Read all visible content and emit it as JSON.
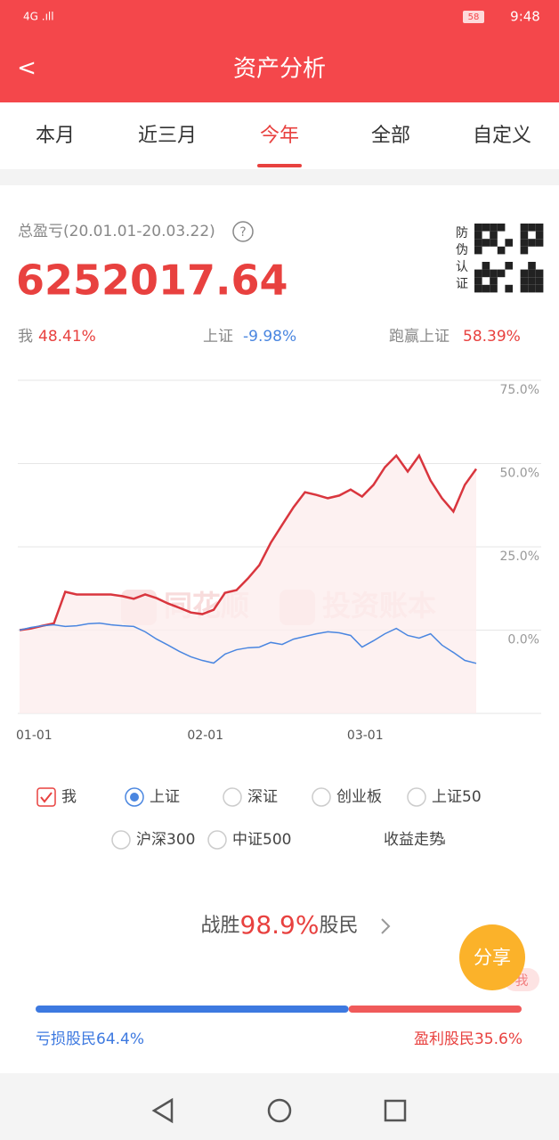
{
  "status_bar": {
    "battery": "58",
    "time": "9:48"
  },
  "header": {
    "back": "<",
    "title": "资产分析"
  },
  "tabs": [
    "本月",
    "近三月",
    "今年",
    "全部",
    "自定义"
  ],
  "active_tab": 2,
  "summary": {
    "label": "总盈亏(20.01.01-20.03.22)",
    "help": "?",
    "total": "6252017.64",
    "qr_label": [
      "防",
      "伪",
      "认",
      "证"
    ],
    "me_label": "我",
    "me_value": "48.41%",
    "index_label": "上证",
    "index_value": "-9.98%",
    "beat_label": "跑赢上证",
    "beat_value": "58.39%"
  },
  "chart_data": {
    "type": "line",
    "watermark": [
      "同花顺",
      "投资账本"
    ],
    "categories": [
      "01-01",
      null,
      null,
      null,
      null,
      null,
      null,
      null,
      null,
      null,
      null,
      null,
      null,
      null,
      null,
      "02-01",
      null,
      null,
      null,
      null,
      null,
      null,
      null,
      null,
      null,
      null,
      null,
      null,
      null,
      "03-01",
      null,
      null,
      null,
      null,
      null,
      null,
      null,
      null,
      null,
      null,
      null
    ],
    "series": [
      {
        "name": "我",
        "color": "#d9363e",
        "values": [
          0,
          0.5,
          1.3,
          2,
          11.5,
          10.7,
          10.7,
          10.7,
          10.7,
          10.2,
          9.4,
          10.7,
          9.6,
          8,
          6.7,
          5.3,
          4.8,
          6.1,
          11.2,
          12,
          15.5,
          19.5,
          26.2,
          31.6,
          36.9,
          41.4,
          40.6,
          39.6,
          40.4,
          42.2,
          40.1,
          43.6,
          48.9,
          52.4,
          47.6,
          52.4,
          44.9,
          39.6,
          35.6,
          43.6,
          48.4
        ]
      },
      {
        "name": "上证",
        "color": "#4a86e0",
        "values": [
          0,
          0.8,
          1.3,
          1.6,
          1.1,
          1.3,
          1.9,
          2.1,
          1.6,
          1.3,
          1.1,
          -0.5,
          -2.7,
          -4.5,
          -6.4,
          -8,
          -9.1,
          -9.9,
          -7.2,
          -5.9,
          -5.3,
          -5.1,
          -3.7,
          -4.3,
          -2.7,
          -1.9,
          -1.1,
          -0.5,
          -0.8,
          -1.6,
          -5.1,
          -3.2,
          -1.1,
          0.5,
          -1.6,
          -2.4,
          -1.1,
          -4.5,
          -6.7,
          -9.1,
          -9.98
        ]
      }
    ],
    "ylim": [
      -25,
      75
    ],
    "yticks": [
      {
        "value": 0,
        "label": "0.0%"
      },
      {
        "value": 25,
        "label": "25.0%"
      },
      {
        "value": 50,
        "label": "50.0%"
      },
      {
        "value": 75,
        "label": "75.0%"
      }
    ],
    "grid": true
  },
  "options": [
    "我",
    "上证",
    "深证",
    "创业板",
    "上证50",
    "沪深300",
    "中证500"
  ],
  "trend": "收益走势",
  "beat": {
    "prefix": "战胜",
    "value": "98.9%",
    "suffix": "股民"
  },
  "share": "分享",
  "share_tag": "我",
  "distribution": {
    "loss_label": "亏损股民",
    "loss": 64.4,
    "loss_text": "64.4%",
    "profit_label": "盈利股民",
    "profit": 35.6,
    "profit_text": "35.6%"
  }
}
